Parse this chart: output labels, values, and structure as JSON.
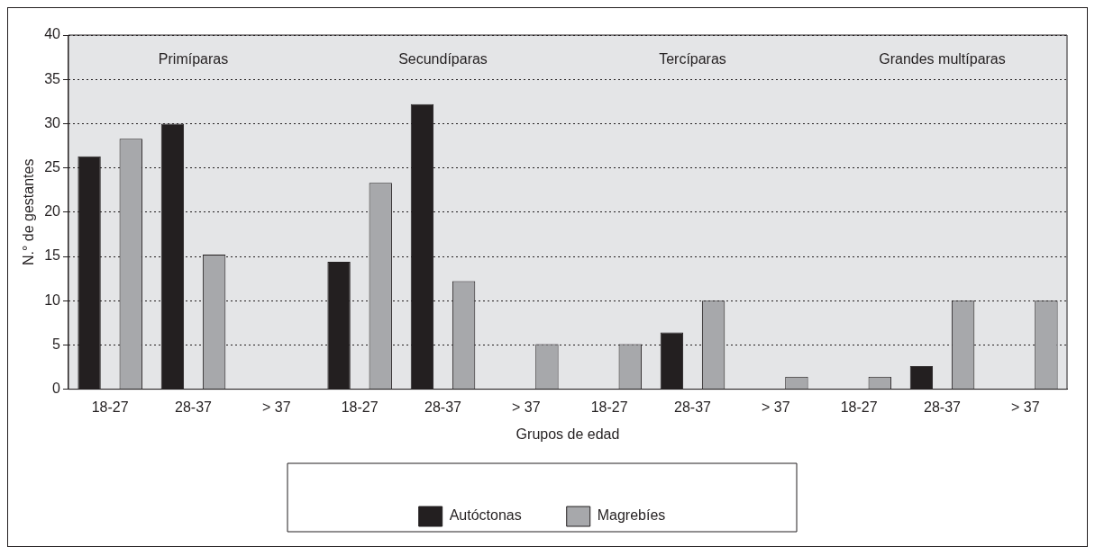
{
  "chart_data": {
    "type": "bar",
    "xlabel": "Grupos de edad",
    "ylabel": "N.° de gestantes",
    "categories": [
      "18-27",
      "28-37",
      "> 37",
      "18-27",
      "28-37",
      "> 37",
      "18-27",
      "28-37",
      "> 37",
      "18-27",
      "28-37",
      "> 37"
    ],
    "series": [
      {
        "name": "Autóctonas",
        "color": "#231f20",
        "values": [
          26.3,
          30,
          0,
          14.4,
          32.2,
          0,
          0,
          6.4,
          0,
          0,
          2.6,
          0
        ]
      },
      {
        "name": "Magrebíes",
        "color": "#a7a8ab",
        "values": [
          28.3,
          15.2,
          0,
          23.3,
          12.2,
          5.1,
          5.1,
          10,
          1.4,
          1.4,
          10,
          10
        ]
      }
    ],
    "annotations": [
      "Primíparas",
      "Secundíparas",
      "Tercíparas",
      "Grandes multíparas"
    ],
    "ylim": [
      0,
      40
    ],
    "yticks": [
      0,
      5,
      10,
      15,
      20,
      25,
      30,
      35,
      40
    ],
    "grid": "y",
    "legend": "bottom"
  }
}
